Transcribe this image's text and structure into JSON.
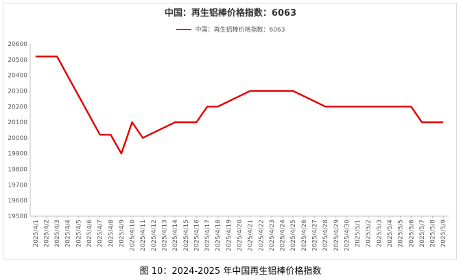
{
  "figure": {
    "caption": "图 10：2024-2025 年中国再生铝棒价格指数"
  },
  "chart_data": {
    "type": "line",
    "title": "中国：再生铝棒价格指数：6063",
    "legend_position": "top-center",
    "grid": false,
    "ylim": [
      19500,
      20600
    ],
    "yticks": [
      19500,
      19600,
      19700,
      19800,
      19900,
      20000,
      20100,
      20200,
      20300,
      20400,
      20500,
      20600
    ],
    "x": [
      "2025/4/1",
      "2025/4/2",
      "2025/4/3",
      "2025/4/4",
      "2025/4/5",
      "2025/4/6",
      "2025/4/7",
      "2025/4/8",
      "2025/4/9",
      "2025/4/10",
      "2025/4/11",
      "2025/4/12",
      "2025/4/13",
      "2025/4/14",
      "2025/4/15",
      "2025/4/16",
      "2025/4/17",
      "2025/4/18",
      "2025/4/19",
      "2025/4/20",
      "2025/4/21",
      "2025/4/22",
      "2025/4/23",
      "2025/4/24",
      "2025/4/25",
      "2025/4/26",
      "2025/4/27",
      "2025/4/28",
      "2025/4/29",
      "2025/4/30",
      "2025/5/1",
      "2025/5/2",
      "2025/5/3",
      "2025/5/4",
      "2025/5/5",
      "2025/5/6",
      "2025/5/7",
      "2025/5/8",
      "2025/5/9"
    ],
    "series": [
      {
        "name": "中国：再生铝棒价格指数：6063",
        "color": "#e60000",
        "values": [
          20520,
          20520,
          20520,
          null,
          null,
          null,
          20020,
          20020,
          19900,
          20100,
          20000,
          null,
          null,
          20100,
          20100,
          20100,
          20200,
          20200,
          null,
          null,
          20300,
          20300,
          20300,
          20300,
          20300,
          null,
          null,
          20200,
          20200,
          20200,
          20200,
          20200,
          20200,
          20200,
          20200,
          20200,
          20100,
          20100,
          20100
        ]
      }
    ]
  }
}
